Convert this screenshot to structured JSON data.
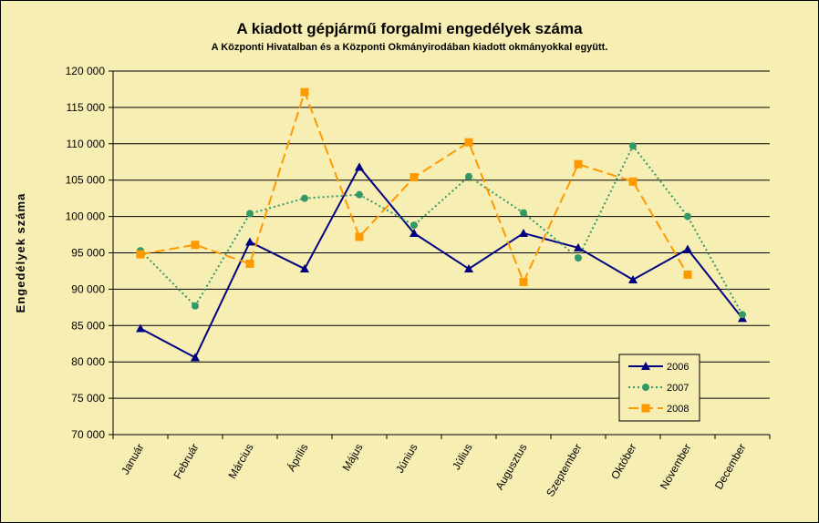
{
  "chart_data": {
    "type": "line",
    "title": "A  kiadott gépjármű forgalmi engedélyek száma",
    "subtitle": "A  Központi Hivatalban és a Központi Okmányirodában kiadott okmányokkal együtt.",
    "xlabel": "",
    "ylabel": "Engedélyek száma",
    "ylim": [
      70000,
      120000
    ],
    "ytick_step": 5000,
    "ytick_labels": [
      "70 000",
      "75 000",
      "80 000",
      "85 000",
      "90 000",
      "95 000",
      "100 000",
      "105 000",
      "110 000",
      "115 000",
      "120 000"
    ],
    "grid": "horizontal",
    "legend_position": "lower-right",
    "categories": [
      "Január",
      "Február",
      "Március",
      "Április",
      "Május",
      "Június",
      "Július",
      "Augusztus",
      "Szeptember",
      "Október",
      "November",
      "December"
    ],
    "series": [
      {
        "name": "2006",
        "color": "#000080",
        "dash": "solid",
        "marker": "triangle",
        "values": [
          84600,
          80600,
          96500,
          92800,
          106800,
          97700,
          92800,
          97700,
          95700,
          91300,
          95500,
          86000
        ]
      },
      {
        "name": "2007",
        "color": "#339966",
        "dash": "dotted",
        "marker": "circle",
        "values": [
          95300,
          87700,
          100400,
          102500,
          103000,
          98800,
          105500,
          100500,
          94300,
          109700,
          100000,
          86500
        ]
      },
      {
        "name": "2008",
        "color": "#ff9900",
        "dash": "dashed",
        "marker": "square",
        "values": [
          94800,
          96100,
          93500,
          117100,
          97200,
          105400,
          110200,
          91000,
          107200,
          104800,
          92000,
          null
        ]
      }
    ]
  }
}
